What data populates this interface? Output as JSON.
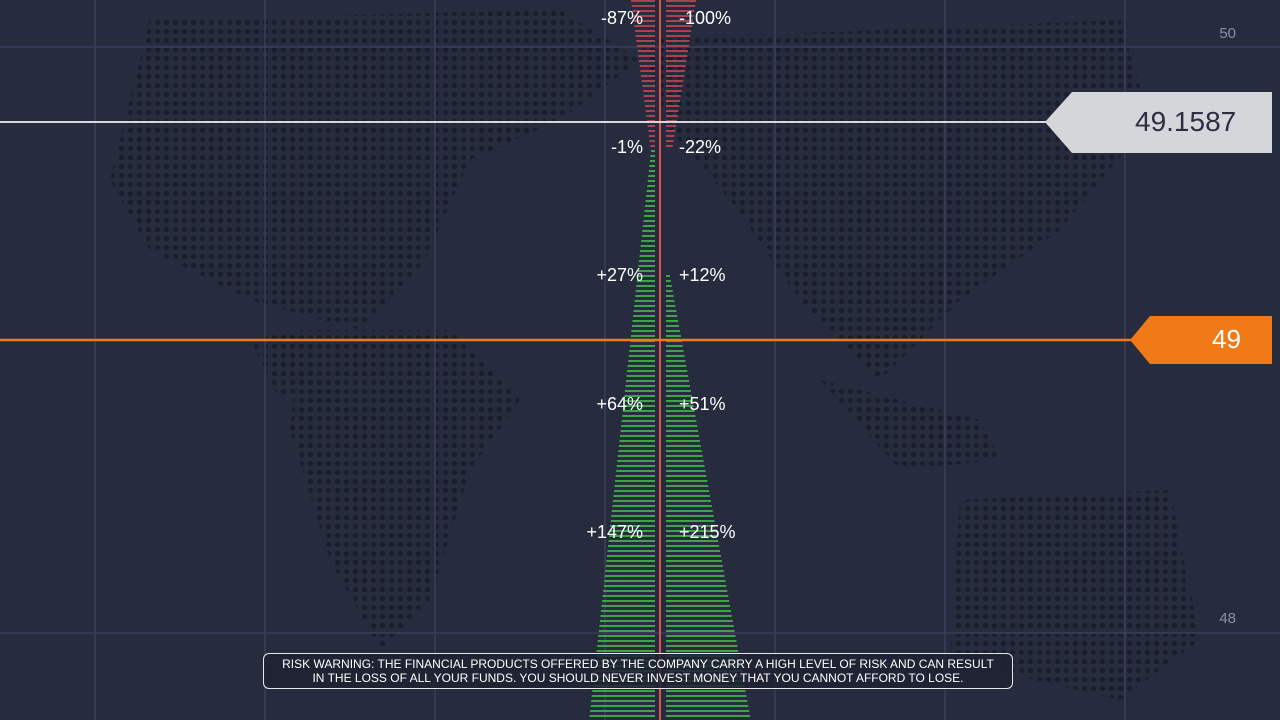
{
  "axis": {
    "labels": [
      "50",
      "48"
    ]
  },
  "price": {
    "current": "49.1587",
    "strike": "49"
  },
  "payouts": [
    {
      "left": "-87%",
      "right": "-100%"
    },
    {
      "left": "-1%",
      "right": "-22%"
    },
    {
      "left": "+27%",
      "right": "+12%"
    },
    {
      "left": "+64%",
      "right": "+51%"
    },
    {
      "left": "+147%",
      "right": "+215%"
    }
  ],
  "risk_warning": [
    "RISK WARNING: THE FINANCIAL PRODUCTS OFFERED BY THE COMPANY CARRY A HIGH LEVEL OF RISK AND CAN RESULT",
    "IN THE LOSS OF ALL YOUR FUNDS. YOU SHOULD NEVER INVEST MONEY THAT YOU CANNOT AFFORD TO LOSE."
  ]
}
